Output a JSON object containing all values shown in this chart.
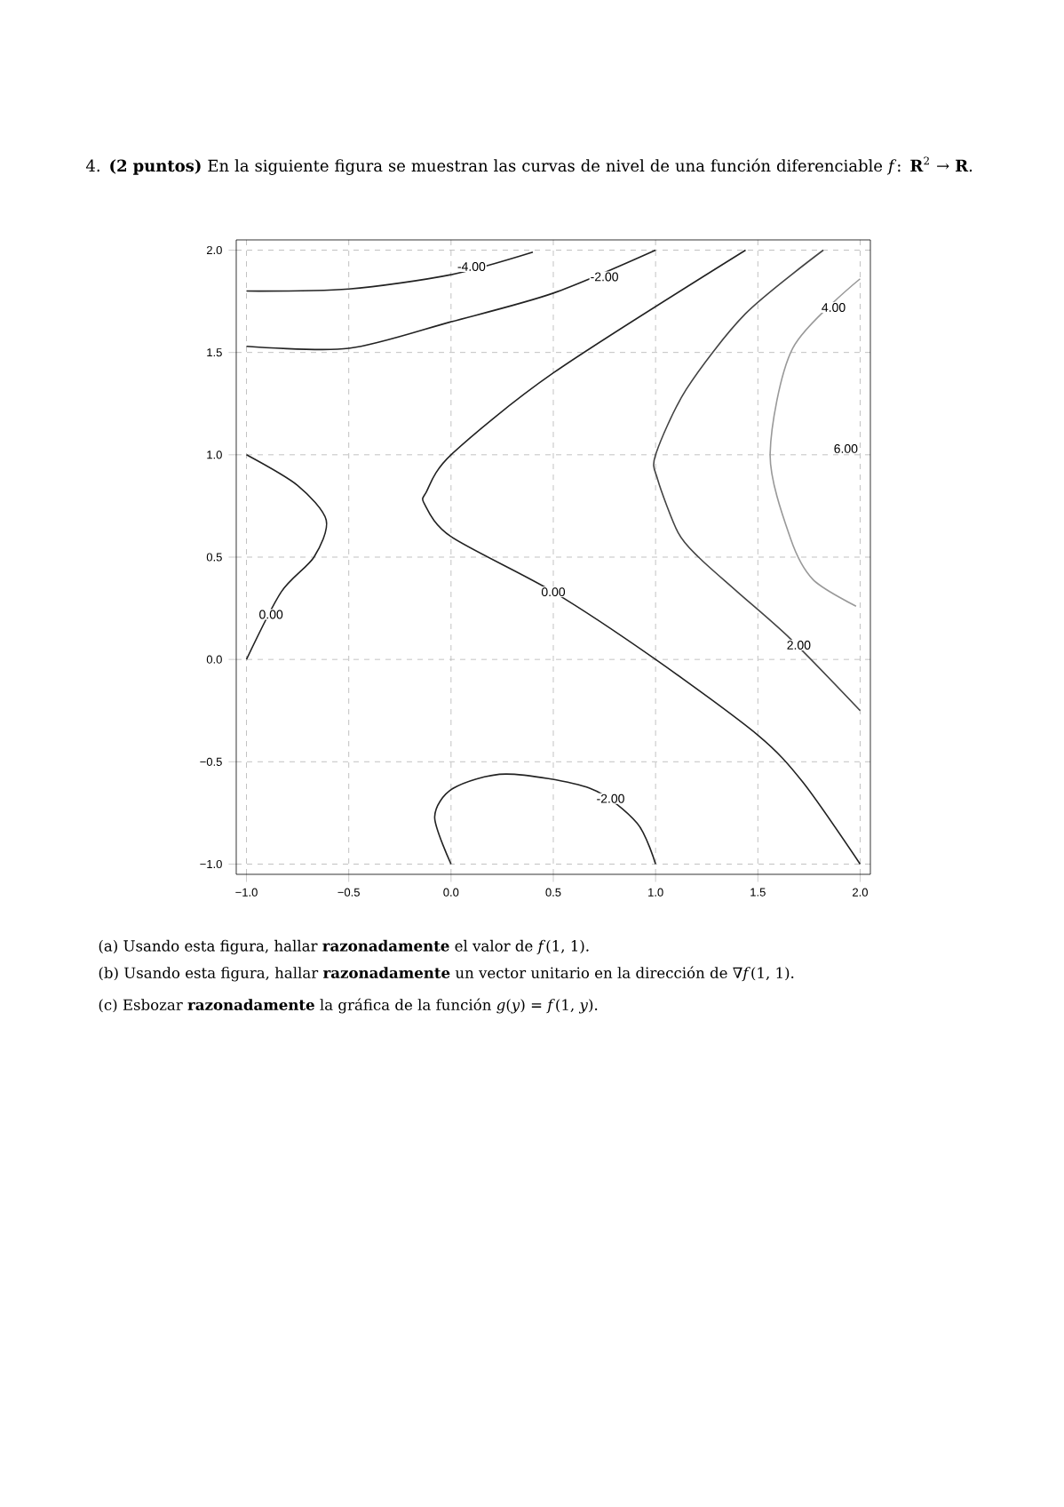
{
  "chart_data": {
    "type": "line",
    "title": "4. **(2 puntos)** En la siguiente figura se muestran las curvas de nivel de una función diferenciable *f*: **R**$^{2}$ → **R**.",
    "xlim": [
      -1.05,
      2.05
    ],
    "ylim": [
      -1.05,
      2.05
    ],
    "xticks": [
      {
        "value": -1,
        "label": "−1.0"
      },
      {
        "value": -0.5,
        "label": "−0.5"
      },
      {
        "value": 0,
        "label": "0.0"
      },
      {
        "value": 0.5,
        "label": "0.5"
      },
      {
        "value": 1,
        "label": "1.0"
      },
      {
        "value": 1.5,
        "label": "1.5"
      },
      {
        "value": 2,
        "label": "2.0"
      }
    ],
    "yticks": [
      {
        "value": -1,
        "label": "−1.0"
      },
      {
        "value": -0.5,
        "label": "−0.5"
      },
      {
        "value": 0,
        "label": "0.0"
      },
      {
        "value": 0.5,
        "label": "0.5"
      },
      {
        "value": 1,
        "label": "1.0"
      },
      {
        "value": 1.5,
        "label": "1.5"
      },
      {
        "value": 2,
        "label": "2.0"
      }
    ],
    "grid": true,
    "series": [
      {
        "color": "#222222",
        "x": [
          -1,
          -0.5,
          0,
          0.4
        ],
        "values": [
          1.8,
          1.81,
          1.88,
          1.99
        ]
      },
      {
        "color": "#222222",
        "x": [
          -1,
          -0.5,
          0,
          0.5,
          1.0
        ],
        "values": [
          1.53,
          1.52,
          1.65,
          1.79,
          2.0
        ]
      },
      {
        "color": "#222222",
        "x": [
          1.44,
          0.5,
          0,
          -0.12,
          -0.13,
          0,
          0.5,
          1.0,
          1.5,
          1.72,
          2.0
        ],
        "values": [
          2.0,
          1.4,
          1.0,
          0.82,
          0.76,
          0.6,
          0.33,
          0.0,
          -0.37,
          -0.6,
          -1.0
        ]
      },
      {
        "color": "#222222",
        "x": [
          -1,
          -0.75,
          -0.61,
          -0.67,
          -0.83,
          -1.0
        ],
        "values": [
          1.0,
          0.85,
          0.68,
          0.5,
          0.33,
          0.0
        ]
      },
      {
        "color": "#444444",
        "x": [
          1.82,
          1.44,
          1.15,
          1.0,
          1.01,
          1.11,
          1.21,
          1.4,
          1.66,
          2.0
        ],
        "values": [
          2.0,
          1.69,
          1.32,
          1.0,
          0.88,
          0.62,
          0.5,
          0.33,
          0.1,
          -0.25
        ]
      },
      {
        "color": "#999999",
        "x": [
          2.0,
          1.67,
          1.56,
          1.66,
          1.77,
          1.98
        ],
        "values": [
          1.86,
          1.52,
          1.0,
          0.59,
          0.39,
          0.26
        ]
      },
      {
        "color": "#222222",
        "x": [
          0,
          -0.08,
          0.01,
          0.27,
          0.68,
          0.91,
          1.0
        ],
        "values": [
          -1,
          -0.77,
          -0.63,
          -0.56,
          -0.63,
          -0.8,
          -1.0
        ]
      }
    ],
    "annotations": [
      {
        "text": "-4.00",
        "x": 0.1,
        "y": 1.92
      },
      {
        "text": "-2.00",
        "x": 0.75,
        "y": 1.87
      },
      {
        "text": "4.00",
        "x": 1.87,
        "y": 1.72
      },
      {
        "text": "6.00",
        "x": 1.93,
        "y": 1.03
      },
      {
        "text": "0.00",
        "x": -0.88,
        "y": 0.22
      },
      {
        "text": "0.00",
        "x": 0.5,
        "y": 0.33
      },
      {
        "text": "2.00",
        "x": 1.7,
        "y": 0.07
      },
      {
        "text": "-2.00",
        "x": 0.78,
        "y": -0.68
      },
      "(a) Usando esta figura, hallar **razonadamente** el valor de *f*(1, 1).",
      "(b) Usando esta figura, hallar **razonadamente** un vector unitario en la dirección de ∇*f*(1, 1).",
      "(c) Esbozar **razonadamente** la gráfica de la función *g*(*y*) = *f*(1, *y*)."
    ]
  }
}
